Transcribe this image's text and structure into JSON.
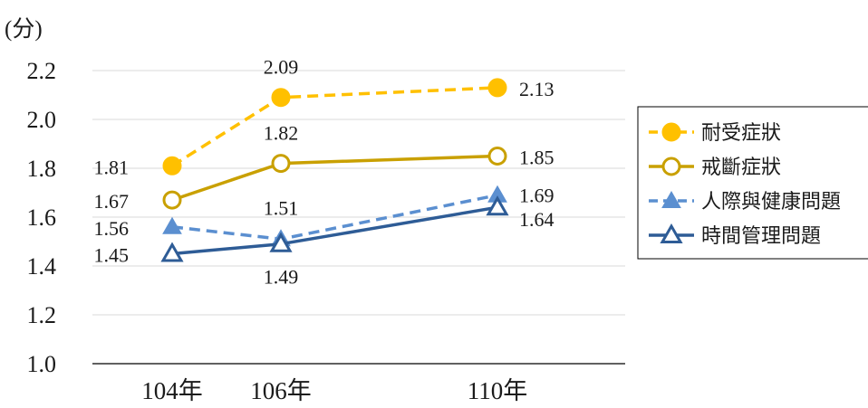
{
  "chart_data": {
    "type": "line",
    "unit_label": "(分)",
    "categories": [
      "104年",
      "106年",
      "110年"
    ],
    "x_years": [
      104,
      106,
      110
    ],
    "ylim": [
      1.0,
      2.2
    ],
    "yticks": [
      "1.0",
      "1.2",
      "1.4",
      "1.6",
      "1.8",
      "2.0",
      "2.2"
    ],
    "grid": true,
    "legend_position": "right",
    "series": [
      {
        "name": "耐受症狀",
        "values": [
          1.81,
          2.09,
          2.13
        ],
        "labels": [
          "1.81",
          "2.09",
          "2.13"
        ],
        "color": "#FFC000",
        "dash": true,
        "marker": "circle-filled"
      },
      {
        "name": "戒斷症狀",
        "values": [
          1.67,
          1.82,
          1.85
        ],
        "labels": [
          "1.67",
          "1.82",
          "1.85"
        ],
        "color": "#C9A000",
        "dash": false,
        "marker": "circle-open"
      },
      {
        "name": "人際與健康問題",
        "values": [
          1.56,
          1.51,
          1.69
        ],
        "labels": [
          "1.56",
          "1.51",
          "1.69"
        ],
        "color": "#5B8FD0",
        "dash": true,
        "marker": "triangle-filled"
      },
      {
        "name": "時間管理問題",
        "values": [
          1.45,
          1.49,
          1.64
        ],
        "labels": [
          "1.45",
          "1.49",
          "1.64"
        ],
        "color": "#2E5C96",
        "dash": false,
        "marker": "triangle-open"
      }
    ]
  }
}
